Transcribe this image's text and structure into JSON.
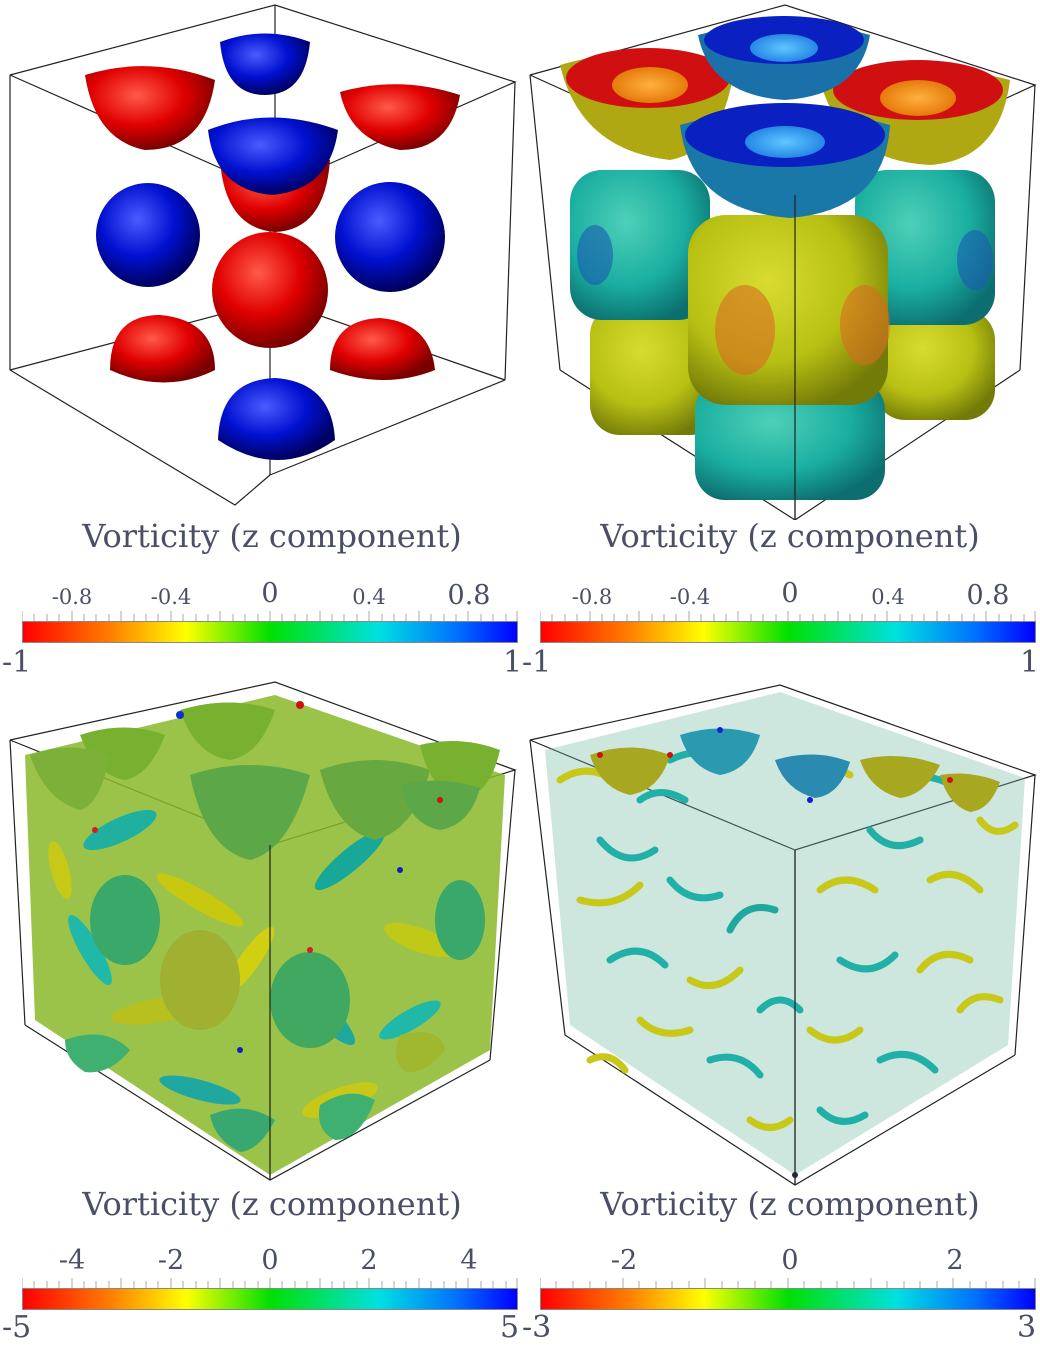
{
  "panels": [
    {
      "title": "Vorticity (z component)",
      "min_label": "-1",
      "max_label": "1",
      "ticks": [
        "-0.8",
        "-0.4",
        "0",
        "0.4",
        "0.8"
      ]
    },
    {
      "title": "Vorticity (z component)",
      "min_label": "-1",
      "max_label": "1",
      "ticks": [
        "-0.8",
        "-0.4",
        "0",
        "0.4",
        "0.8"
      ]
    },
    {
      "title": "Vorticity (z component)",
      "min_label": "-5",
      "max_label": "5",
      "ticks": [
        "-4",
        "-2",
        "0",
        "2",
        "4"
      ]
    },
    {
      "title": "Vorticity (z component)",
      "min_label": "-3",
      "max_label": "3",
      "ticks": [
        "-2",
        "0",
        "2"
      ]
    }
  ],
  "colormap": [
    "#ff0000",
    "#ff8000",
    "#ffff00",
    "#00ff00",
    "#00e0e0",
    "#0060ff",
    "#0000ff"
  ]
}
